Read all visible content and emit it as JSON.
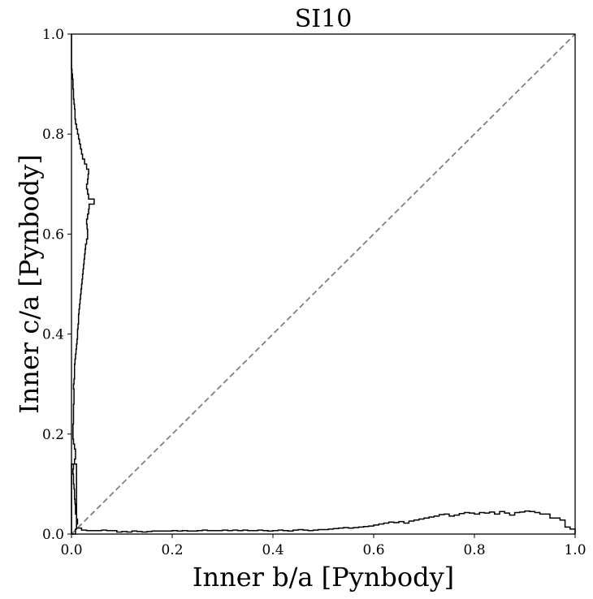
{
  "chart_data": {
    "type": "histogram",
    "title": "SI10",
    "xlabel": "Inner b/a [Pynbody]",
    "ylabel": "Inner c/a [Pynbody]",
    "xlim": [
      0,
      1
    ],
    "ylim": [
      0,
      1
    ],
    "grid": false,
    "xticks": [
      "0.0",
      "0.2",
      "0.4",
      "0.6",
      "0.8",
      "1.0"
    ],
    "yticks": [
      "0.0",
      "0.2",
      "0.4",
      "0.6",
      "0.8",
      "1.0"
    ],
    "reference_line": {
      "style": "dashed",
      "color": "#808080",
      "from": [
        0,
        0
      ],
      "to": [
        1,
        1
      ]
    },
    "colors": {
      "histogram": "#000000",
      "reference": "#808080"
    },
    "hist_bottom": {
      "orientation": "vertical",
      "bin_edges_start": 0.0,
      "bin_width": 0.01,
      "values": [
        0.14,
        0.012,
        0.008,
        0.007,
        0.007,
        0.007,
        0.008,
        0.007,
        0.007,
        0.004,
        0.005,
        0.004,
        0.006,
        0.005,
        0.004,
        0.005,
        0.006,
        0.006,
        0.006,
        0.006,
        0.007,
        0.006,
        0.007,
        0.006,
        0.006,
        0.007,
        0.008,
        0.007,
        0.007,
        0.007,
        0.008,
        0.007,
        0.008,
        0.007,
        0.008,
        0.007,
        0.007,
        0.008,
        0.007,
        0.006,
        0.007,
        0.008,
        0.007,
        0.006,
        0.008,
        0.009,
        0.008,
        0.007,
        0.008,
        0.009,
        0.009,
        0.01,
        0.011,
        0.012,
        0.013,
        0.012,
        0.013,
        0.014,
        0.015,
        0.016,
        0.018,
        0.02,
        0.022,
        0.024,
        0.023,
        0.025,
        0.022,
        0.026,
        0.028,
        0.03,
        0.032,
        0.034,
        0.036,
        0.039,
        0.04,
        0.036,
        0.038,
        0.041,
        0.043,
        0.042,
        0.04,
        0.043,
        0.042,
        0.044,
        0.04,
        0.045,
        0.042,
        0.038,
        0.043,
        0.044,
        0.046,
        0.045,
        0.043,
        0.04,
        0.04,
        0.032,
        0.032,
        0.028,
        0.014,
        0.01
      ]
    },
    "hist_left": {
      "orientation": "horizontal",
      "bin_edges_start": 0.0,
      "bin_width": 0.01,
      "values": [
        0.008,
        0.01,
        0.012,
        0.01,
        0.008,
        0.008,
        0.007,
        0.006,
        0.006,
        0.005,
        0.004,
        0.004,
        0.003,
        0.004,
        0.006,
        0.008,
        0.008,
        0.006,
        0.004,
        0.003,
        0.003,
        0.003,
        0.004,
        0.004,
        0.004,
        0.004,
        0.005,
        0.005,
        0.005,
        0.004,
        0.005,
        0.006,
        0.006,
        0.006,
        0.007,
        0.008,
        0.009,
        0.01,
        0.011,
        0.012,
        0.012,
        0.013,
        0.014,
        0.014,
        0.015,
        0.016,
        0.017,
        0.018,
        0.019,
        0.02,
        0.021,
        0.022,
        0.023,
        0.024,
        0.025,
        0.026,
        0.027,
        0.028,
        0.03,
        0.032,
        0.032,
        0.031,
        0.03,
        0.032,
        0.034,
        0.035,
        0.045,
        0.034,
        0.032,
        0.03,
        0.032,
        0.033,
        0.034,
        0.03,
        0.026,
        0.022,
        0.02,
        0.018,
        0.016,
        0.014,
        0.012,
        0.01,
        0.008,
        0.007,
        0.007,
        0.006,
        0.005,
        0.004,
        0.004,
        0.003,
        0.003,
        0.002,
        0.001,
        0.0,
        0.0,
        0.0,
        0.0,
        0.0,
        0.0,
        0.0
      ]
    }
  }
}
